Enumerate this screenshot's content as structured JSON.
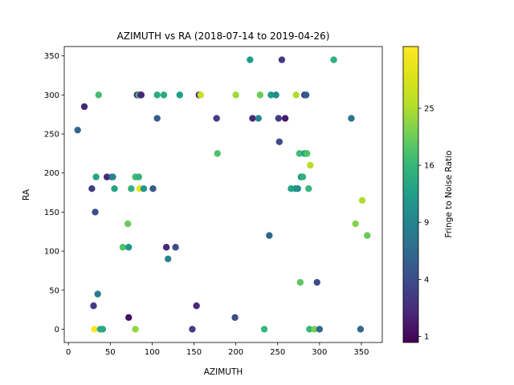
{
  "chart_data": {
    "type": "scatter",
    "title": "AZIMUTH vs RA (2018-07-14 to 2019-04-26)",
    "xlabel": "AZIMUTH",
    "ylabel": "RA",
    "xlim": [
      -5,
      375
    ],
    "ylim": [
      -17,
      362
    ],
    "xticks": [
      0,
      50,
      100,
      150,
      200,
      250,
      300,
      350
    ],
    "yticks": [
      0,
      50,
      100,
      150,
      200,
      250,
      300,
      350
    ],
    "grid": false,
    "colorbar": {
      "label": "Fringe to Noise Ratio",
      "scale": "sqrt",
      "range": [
        0.8,
        37
      ],
      "ticks": [
        1,
        4,
        9,
        16,
        25
      ],
      "colormap": "viridis"
    },
    "points": [
      [
        11,
        255,
        6
      ],
      [
        19,
        285,
        2
      ],
      [
        28,
        180,
        3
      ],
      [
        30,
        30,
        3
      ],
      [
        31,
        0,
        37
      ],
      [
        32,
        150,
        4
      ],
      [
        33,
        195,
        13
      ],
      [
        35,
        45,
        8
      ],
      [
        36,
        300,
        17
      ],
      [
        38,
        0,
        14
      ],
      [
        41,
        0,
        14
      ],
      [
        46,
        195,
        2
      ],
      [
        52,
        195,
        4
      ],
      [
        53,
        195,
        9
      ],
      [
        55,
        180,
        13
      ],
      [
        65,
        105,
        18
      ],
      [
        71,
        135,
        20
      ],
      [
        72,
        15,
        1.2
      ],
      [
        72,
        105,
        11
      ],
      [
        75,
        180,
        15
      ],
      [
        80,
        195,
        17
      ],
      [
        80,
        0,
        23
      ],
      [
        82,
        300,
        2
      ],
      [
        84,
        300,
        18
      ],
      [
        84,
        195,
        15
      ],
      [
        85,
        180,
        33
      ],
      [
        86,
        300,
        4
      ],
      [
        87,
        300,
        2
      ],
      [
        90,
        180,
        11
      ],
      [
        101,
        180,
        5
      ],
      [
        106,
        300,
        14
      ],
      [
        106,
        270,
        5
      ],
      [
        114,
        300,
        14
      ],
      [
        117,
        105,
        2
      ],
      [
        119,
        90,
        9
      ],
      [
        128,
        105,
        4
      ],
      [
        133,
        300,
        12
      ],
      [
        148,
        0,
        3
      ],
      [
        153,
        30,
        2
      ],
      [
        156,
        300,
        2
      ],
      [
        158,
        300,
        28
      ],
      [
        177,
        270,
        3
      ],
      [
        178,
        225,
        18
      ],
      [
        199,
        15,
        4
      ],
      [
        200,
        300,
        24
      ],
      [
        217,
        345,
        12
      ],
      [
        220,
        270,
        2
      ],
      [
        227,
        270,
        9
      ],
      [
        229,
        300,
        20
      ],
      [
        234,
        0,
        16
      ],
      [
        240,
        120,
        6
      ],
      [
        242,
        300,
        12
      ],
      [
        248,
        300,
        10
      ],
      [
        251,
        270,
        3
      ],
      [
        252,
        240,
        4
      ],
      [
        255,
        345,
        3
      ],
      [
        259,
        270,
        1.5
      ],
      [
        266,
        180,
        13
      ],
      [
        271,
        180,
        12
      ],
      [
        272,
        300,
        25
      ],
      [
        274,
        180,
        10
      ],
      [
        276,
        225,
        17
      ],
      [
        277,
        60,
        19
      ],
      [
        278,
        195,
        10
      ],
      [
        280,
        195,
        15
      ],
      [
        282,
        225,
        13
      ],
      [
        282,
        300,
        3
      ],
      [
        284,
        300,
        5
      ],
      [
        285,
        225,
        18
      ],
      [
        287,
        180,
        16
      ],
      [
        288,
        0,
        16
      ],
      [
        289,
        210,
        26
      ],
      [
        294,
        0,
        21
      ],
      [
        297,
        60,
        4
      ],
      [
        300,
        0,
        6
      ],
      [
        317,
        345,
        15
      ],
      [
        338,
        270,
        7
      ],
      [
        343,
        135,
        22
      ],
      [
        349,
        0,
        6
      ],
      [
        351,
        165,
        25
      ],
      [
        357,
        120,
        20
      ]
    ]
  }
}
